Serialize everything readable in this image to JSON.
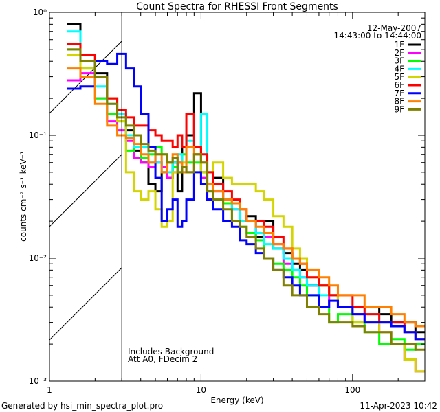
{
  "chart_data": {
    "type": "line",
    "title": "Count Spectra for RHESSI Front Segments",
    "xlabel": "Energy (keV)",
    "ylabel": "counts cm⁻² s⁻¹ keV⁻¹",
    "xscale": "log",
    "yscale": "log",
    "xlim": [
      1,
      300
    ],
    "ylim": [
      0.001,
      1
    ],
    "x_tick_labels": [
      {
        "value": 1,
        "label": "1"
      },
      {
        "value": 10,
        "label": "10"
      },
      {
        "value": 100,
        "label": "100"
      }
    ],
    "y_tick_labels": [
      {
        "value": 1,
        "label": "10⁰"
      },
      {
        "value": 0.1,
        "label": "10⁻¹"
      },
      {
        "value": 0.01,
        "label": "10⁻²"
      },
      {
        "value": 0.001,
        "label": "10⁻³"
      }
    ],
    "legend": {
      "placement": "top-right",
      "date": "12-May-2007",
      "time_range": "14:43:00 to 14:44:00"
    },
    "annotations": [
      "Includes Background",
      "Att A0, FDecim 2"
    ],
    "hatched_region_keV": [
      1,
      3
    ],
    "energy_bin_edges": [
      1.3,
      1.6,
      2.0,
      2.4,
      2.8,
      3.2,
      3.6,
      4.0,
      4.5,
      5.0,
      5.5,
      6.0,
      6.5,
      7.0,
      7.5,
      8.0,
      9.0,
      10,
      11,
      12,
      14,
      16,
      18,
      20,
      23,
      26,
      30,
      35,
      40,
      45,
      50,
      60,
      70,
      80,
      100,
      120,
      150,
      180,
      220,
      260,
      300
    ],
    "series": [
      {
        "name": "1F",
        "color": "#000000",
        "values": [
          0.8,
          0.45,
          0.32,
          0.2,
          0.15,
          0.11,
          0.075,
          0.06,
          0.04,
          0.035,
          0.05,
          0.045,
          0.06,
          0.035,
          0.08,
          0.1,
          0.22,
          0.05,
          0.04,
          0.045,
          0.03,
          0.028,
          0.02,
          0.022,
          0.015,
          0.02,
          0.012,
          0.011,
          0.009,
          0.008,
          0.006,
          0.006,
          0.005,
          0.004,
          0.004,
          0.004,
          0.0035,
          0.003,
          0.003,
          0.0025
        ]
      },
      {
        "name": "2F",
        "color": "#ff00ff",
        "values": [
          0.28,
          0.32,
          0.2,
          0.13,
          0.11,
          0.09,
          0.065,
          0.06,
          0.055,
          0.06,
          0.055,
          0.045,
          0.05,
          0.06,
          0.055,
          0.05,
          0.07,
          0.045,
          0.03,
          0.035,
          0.03,
          0.025,
          0.02,
          0.02,
          0.016,
          0.015,
          0.013,
          0.009,
          0.008,
          0.007,
          0.006,
          0.004,
          0.005,
          0.004,
          0.0035,
          0.003,
          0.0025,
          0.002,
          0.0015,
          0.0012
        ]
      },
      {
        "name": "3F",
        "color": "#00ff00",
        "values": [
          0.5,
          0.35,
          0.2,
          0.15,
          0.13,
          0.075,
          0.08,
          0.065,
          0.07,
          0.08,
          0.07,
          0.06,
          0.055,
          0.05,
          0.07,
          0.06,
          0.06,
          0.05,
          0.035,
          0.03,
          0.028,
          0.02,
          0.018,
          0.016,
          0.014,
          0.01,
          0.009,
          0.008,
          0.007,
          0.006,
          0.005,
          0.004,
          0.003,
          0.0035,
          0.003,
          0.0025,
          0.002,
          0.0022,
          0.0018,
          0.002
        ]
      },
      {
        "name": "4F",
        "color": "#00ffff",
        "values": [
          0.7,
          0.4,
          0.25,
          0.18,
          0.15,
          0.1,
          0.08,
          0.08,
          0.06,
          0.06,
          0.05,
          0.05,
          0.06,
          0.07,
          0.05,
          0.09,
          0.08,
          0.15,
          0.05,
          0.04,
          0.03,
          0.025,
          0.02,
          0.02,
          0.016,
          0.013,
          0.012,
          0.01,
          0.008,
          0.007,
          0.006,
          0.005,
          0.005,
          0.004,
          0.004,
          0.0035,
          0.003,
          0.0028,
          0.0025,
          0.0022
        ]
      },
      {
        "name": "5F",
        "color": "#d4d400",
        "values": [
          0.45,
          0.35,
          0.3,
          0.2,
          0.13,
          0.05,
          0.035,
          0.03,
          0.035,
          0.025,
          0.018,
          0.02,
          0.05,
          0.05,
          0.06,
          0.05,
          0.07,
          0.05,
          0.05,
          0.06,
          0.045,
          0.04,
          0.04,
          0.04,
          0.035,
          0.03,
          0.022,
          0.018,
          0.012,
          0.01,
          0.007,
          0.006,
          0.005,
          0.004,
          0.003,
          0.003,
          0.0025,
          0.002,
          0.0015,
          0.0012
        ]
      },
      {
        "name": "6F",
        "color": "#ff0000",
        "values": [
          0.55,
          0.45,
          0.3,
          0.2,
          0.16,
          0.14,
          0.12,
          0.12,
          0.11,
          0.1,
          0.09,
          0.09,
          0.08,
          0.1,
          0.08,
          0.15,
          0.08,
          0.07,
          0.05,
          0.04,
          0.035,
          0.03,
          0.025,
          0.02,
          0.02,
          0.018,
          0.015,
          0.012,
          0.01,
          0.009,
          0.007,
          0.006,
          0.005,
          0.005,
          0.004,
          0.0035,
          0.003,
          0.003,
          0.0025,
          0.0022
        ]
      },
      {
        "name": "7F",
        "color": "#0000ff",
        "values": [
          0.24,
          0.25,
          0.4,
          0.38,
          0.46,
          0.35,
          0.25,
          0.15,
          0.08,
          0.045,
          0.02,
          0.025,
          0.03,
          0.018,
          0.02,
          0.03,
          0.05,
          0.04,
          0.03,
          0.025,
          0.02,
          0.018,
          0.014,
          0.013,
          0.011,
          0.01,
          0.008,
          0.007,
          0.006,
          0.005,
          0.005,
          0.004,
          0.0045,
          0.004,
          0.0035,
          0.003,
          0.003,
          0.0028,
          0.0025,
          0.0022
        ]
      },
      {
        "name": "8F",
        "color": "#ff8000",
        "values": [
          0.35,
          0.3,
          0.18,
          0.12,
          0.1,
          0.095,
          0.085,
          0.07,
          0.06,
          0.07,
          0.05,
          0.06,
          0.07,
          0.06,
          0.05,
          0.08,
          0.07,
          0.06,
          0.04,
          0.035,
          0.03,
          0.028,
          0.025,
          0.02,
          0.018,
          0.016,
          0.013,
          0.012,
          0.01,
          0.009,
          0.008,
          0.007,
          0.006,
          0.005,
          0.005,
          0.004,
          0.004,
          0.0035,
          0.003,
          0.0028
        ]
      },
      {
        "name": "9F",
        "color": "#808000",
        "values": [
          0.5,
          0.4,
          0.3,
          0.18,
          0.14,
          0.12,
          0.1,
          0.085,
          0.075,
          0.07,
          0.07,
          0.06,
          0.065,
          0.05,
          0.055,
          0.05,
          0.07,
          0.06,
          0.035,
          0.03,
          0.025,
          0.02,
          0.018,
          0.015,
          0.012,
          0.01,
          0.008,
          0.006,
          0.005,
          0.005,
          0.004,
          0.0035,
          0.003,
          0.003,
          0.0028,
          0.0025,
          0.0025,
          0.002,
          0.002,
          0.0018
        ]
      }
    ]
  },
  "footer": {
    "generated_by": "Generated by hsi_min_spectra_plot.pro",
    "timestamp": "11-Apr-2023 10:42"
  }
}
